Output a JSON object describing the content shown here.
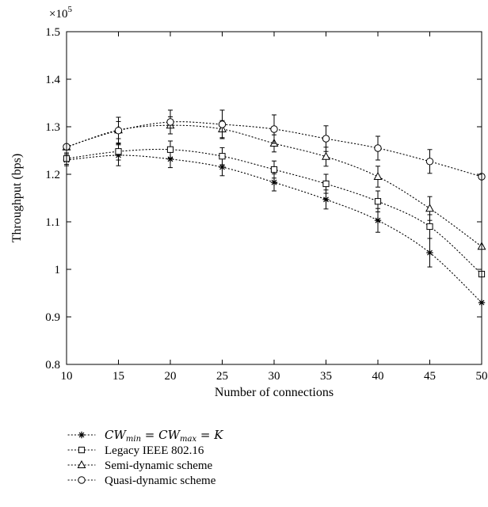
{
  "chart_data": {
    "type": "line",
    "title": "",
    "xlabel": "Number of connections",
    "ylabel": "Throughput (bps)",
    "y_multiplier": "×10",
    "y_multiplier_exp": "5",
    "x": [
      10,
      15,
      20,
      25,
      30,
      35,
      40,
      45,
      50
    ],
    "xlim": [
      10,
      50
    ],
    "ylim": [
      0.8,
      1.5
    ],
    "x_ticks": [
      "10",
      "15",
      "20",
      "25",
      "30",
      "35",
      "40",
      "45",
      "50"
    ],
    "y_ticks": [
      "0.8",
      "0.9",
      "1",
      "1.1",
      "1.2",
      "1.3",
      "1.4",
      "1.5"
    ],
    "grid": false,
    "legend_position": "bottom-left, below axes",
    "series": [
      {
        "marker": "asterisk",
        "values": [
          1.23,
          1.24,
          1.232,
          1.215,
          1.183,
          1.147,
          1.103,
          1.035,
          0.93
        ],
        "errors": [
          0.012,
          0.022,
          0.018,
          0.018,
          0.018,
          0.02,
          0.025,
          0.03,
          0.0
        ],
        "color": "#000000"
      },
      {
        "marker": "square",
        "values": [
          1.233,
          1.248,
          1.252,
          1.238,
          1.21,
          1.18,
          1.143,
          1.09,
          0.99
        ],
        "errors": [
          0.012,
          0.018,
          0.018,
          0.018,
          0.018,
          0.02,
          0.022,
          0.025,
          0.0
        ],
        "color": "#000000"
      },
      {
        "marker": "triangle",
        "values": [
          1.257,
          1.293,
          1.303,
          1.295,
          1.265,
          1.237,
          1.195,
          1.128,
          1.048
        ],
        "errors": [
          0.0,
          0.018,
          0.018,
          0.018,
          0.018,
          0.02,
          0.022,
          0.025,
          0.0
        ],
        "color": "#000000"
      },
      {
        "marker": "circle",
        "values": [
          1.258,
          1.292,
          1.31,
          1.305,
          1.295,
          1.275,
          1.255,
          1.227,
          1.195
        ],
        "errors": [
          0.0,
          0.028,
          0.025,
          0.03,
          0.03,
          0.027,
          0.025,
          0.025,
          0.0
        ],
        "color": "#000000"
      }
    ],
    "legend": {
      "items": [
        {
          "marker": "asterisk",
          "math_cw1": "CW",
          "math_sub1": "min",
          "math_eq1": " = ",
          "math_cw2": "CW",
          "math_sub2": "max",
          "math_eq2": " = K"
        },
        {
          "marker": "square",
          "label": "Legacy IEEE 802.16"
        },
        {
          "marker": "triangle",
          "label": "Semi-dynamic scheme"
        },
        {
          "marker": "circle",
          "label": "Quasi-dynamic scheme"
        }
      ]
    }
  }
}
